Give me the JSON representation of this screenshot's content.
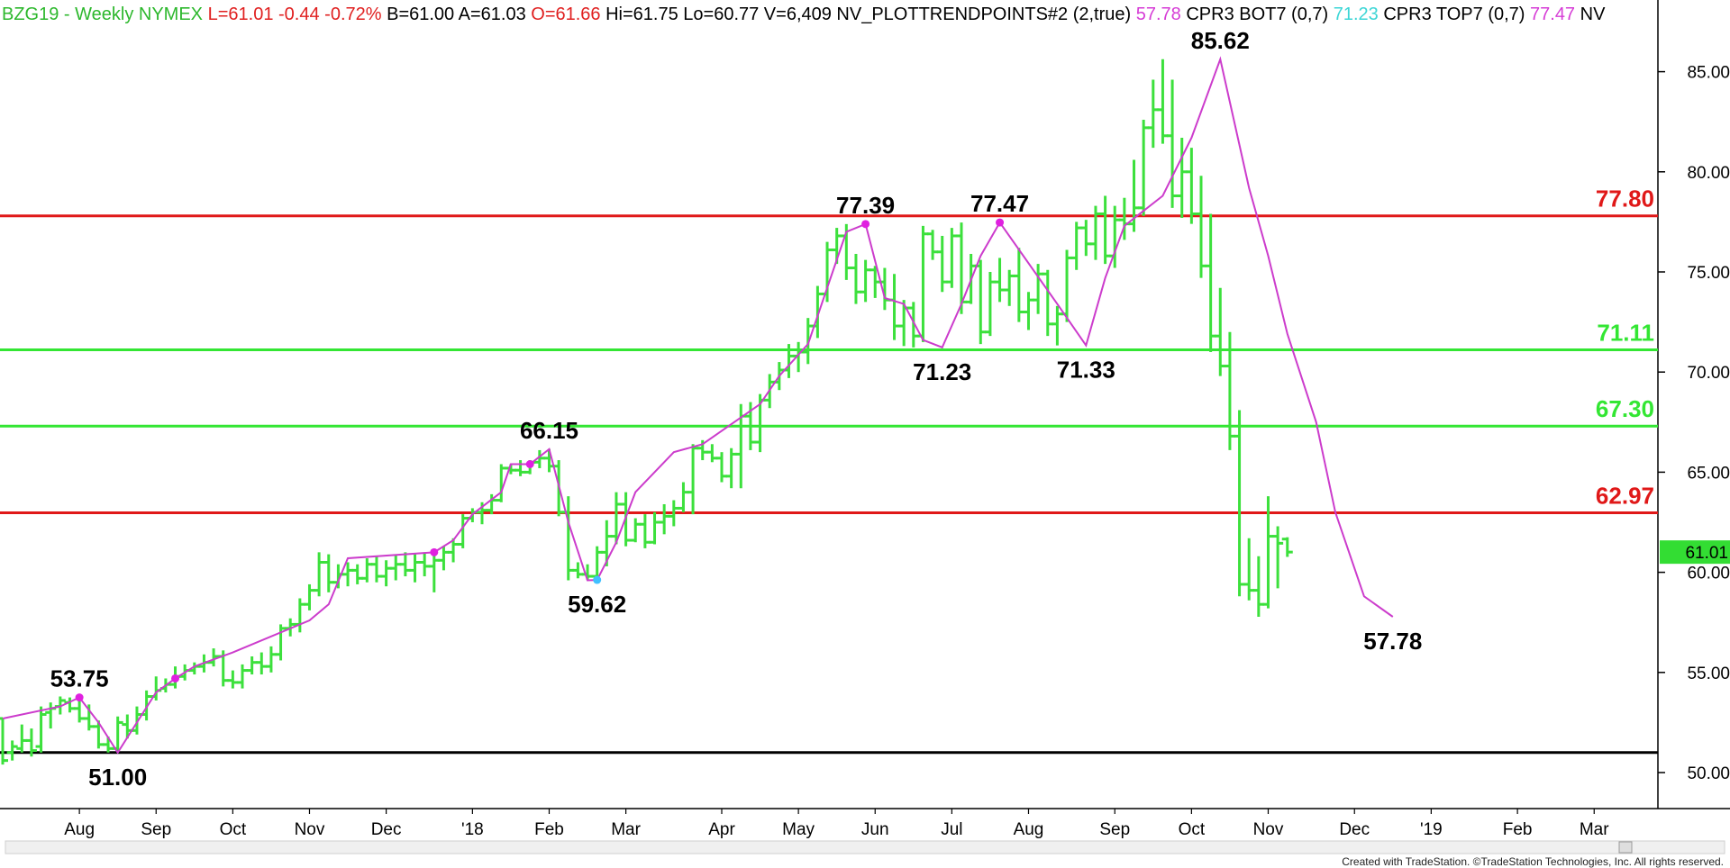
{
  "header": {
    "items": [
      {
        "text": "BZG19 - Weekly  NYMEX",
        "color": "#2db82d"
      },
      {
        "text": "L=61.01",
        "color": "#e02020"
      },
      {
        "text": "-0.44",
        "color": "#e02020"
      },
      {
        "text": "-0.72%",
        "color": "#e02020"
      },
      {
        "text": "B=61.00",
        "color": "#000000"
      },
      {
        "text": "A=61.03",
        "color": "#000000"
      },
      {
        "text": "O=61.66",
        "color": "#e02020"
      },
      {
        "text": "Hi=61.75",
        "color": "#000000"
      },
      {
        "text": "Lo=60.77",
        "color": "#000000"
      },
      {
        "text": "V=6,409",
        "color": "#000000"
      },
      {
        "text": "NV_PLOTTRENDPOINTS#2 (2,true)",
        "color": "#000000"
      },
      {
        "text": "57.78",
        "color": "#d63cd6"
      },
      {
        "text": "CPR3 BOT7 (0,7)",
        "color": "#000000"
      },
      {
        "text": "71.23",
        "color": "#3cd6d6"
      },
      {
        "text": "CPR3 TOP7 (0,7)",
        "color": "#000000"
      },
      {
        "text": "77.47",
        "color": "#d63cd6"
      },
      {
        "text": "NV",
        "color": "#000000"
      }
    ]
  },
  "footer": {
    "credit": "Created with TradeStation. ©TradeStation Technologies, Inc. All rights reserved."
  },
  "colors": {
    "up_bar": "#3ce03c",
    "trend_line": "#cc3ccc",
    "pivot_marker": "#e020e0",
    "pivot_low_marker": "#40c0ff",
    "red_level": "#e01818",
    "green_level": "#33e633",
    "black_level": "#000000",
    "last_price_box": "#33dd33"
  },
  "chart_data": {
    "type": "ohlc",
    "title": "BZG19 - Weekly  NYMEX",
    "ylim": [
      48.0,
      87.5
    ],
    "y_ticks": [
      50.0,
      55.0,
      60.0,
      65.0,
      70.0,
      75.0,
      80.0,
      85.0
    ],
    "y_tick_labels": [
      "50.00",
      "55.00",
      "60.00",
      "65.00",
      "70.00",
      "75.00",
      "80.00",
      "85.00"
    ],
    "x_tick_labels": [
      "Aug",
      "Sep",
      "Oct",
      "Nov",
      "Dec",
      "'18",
      "Feb",
      "Mar",
      "Apr",
      "May",
      "Jun",
      "Jul",
      "Aug",
      "Sep",
      "Oct",
      "Nov",
      "Dec",
      "'19",
      "Feb",
      "Mar"
    ],
    "x_tick_bar_index": [
      8,
      16,
      24,
      32,
      40,
      49,
      57,
      65,
      75,
      83,
      91,
      99,
      107,
      116,
      124,
      132,
      141,
      149,
      158,
      166
    ],
    "horizontal_levels": [
      {
        "value": 77.8,
        "label": "77.80",
        "color": "#e01818"
      },
      {
        "value": 71.11,
        "label": "71.11",
        "color": "#33e633"
      },
      {
        "value": 67.3,
        "label": "67.30",
        "color": "#33e633"
      },
      {
        "value": 62.97,
        "label": "62.97",
        "color": "#e01818"
      },
      {
        "value": 51.0,
        "label": "",
        "color": "#000000"
      }
    ],
    "last_price": {
      "value": 61.01,
      "label": "61.01"
    },
    "pivot_labels": [
      {
        "bar": 8,
        "price": 53.75,
        "text": "53.75",
        "pos": "above"
      },
      {
        "bar": 12,
        "price": 51.0,
        "text": "51.00",
        "pos": "below"
      },
      {
        "bar": 57,
        "price": 66.15,
        "text": "66.15",
        "pos": "above"
      },
      {
        "bar": 62,
        "price": 59.62,
        "text": "59.62",
        "pos": "below"
      },
      {
        "bar": 90,
        "price": 77.39,
        "text": "77.39",
        "pos": "above"
      },
      {
        "bar": 98,
        "price": 71.23,
        "text": "71.23",
        "pos": "below"
      },
      {
        "bar": 104,
        "price": 77.47,
        "text": "77.47",
        "pos": "above"
      },
      {
        "bar": 113,
        "price": 71.33,
        "text": "71.33",
        "pos": "below"
      },
      {
        "bar": 127,
        "price": 85.62,
        "text": "85.62",
        "pos": "above"
      },
      {
        "bar": 145,
        "price": 57.78,
        "text": "57.78",
        "pos": "below"
      }
    ],
    "trend_line": [
      [
        0,
        52.7
      ],
      [
        6,
        53.3
      ],
      [
        8,
        53.75
      ],
      [
        10,
        52.5
      ],
      [
        12,
        51.0
      ],
      [
        16,
        54.0
      ],
      [
        18,
        54.7
      ],
      [
        20,
        55.3
      ],
      [
        24,
        56.0
      ],
      [
        32,
        57.6
      ],
      [
        34,
        58.4
      ],
      [
        36,
        60.7
      ],
      [
        45,
        61.0
      ],
      [
        47,
        61.6
      ],
      [
        49,
        62.9
      ],
      [
        52,
        64.0
      ],
      [
        53,
        65.4
      ],
      [
        55,
        65.4
      ],
      [
        57,
        66.15
      ],
      [
        59,
        62.5
      ],
      [
        61,
        59.6
      ],
      [
        62,
        59.62
      ],
      [
        64,
        61.5
      ],
      [
        66,
        64.0
      ],
      [
        70,
        66.0
      ],
      [
        73,
        66.4
      ],
      [
        79,
        68.4
      ],
      [
        81,
        69.8
      ],
      [
        84,
        71.4
      ],
      [
        86,
        74.2
      ],
      [
        88,
        77.0
      ],
      [
        90,
        77.39
      ],
      [
        92,
        73.7
      ],
      [
        94,
        73.4
      ],
      [
        96,
        71.6
      ],
      [
        98,
        71.23
      ],
      [
        100,
        73.4
      ],
      [
        102,
        75.8
      ],
      [
        104,
        77.47
      ],
      [
        110,
        73.4
      ],
      [
        113,
        71.33
      ],
      [
        115,
        74.7
      ],
      [
        117,
        77.3
      ],
      [
        121,
        78.8
      ],
      [
        124,
        81.7
      ],
      [
        127,
        85.62
      ],
      [
        130,
        79.2
      ],
      [
        132,
        75.8
      ],
      [
        134,
        71.9
      ],
      [
        137,
        67.5
      ],
      [
        139,
        63.0
      ],
      [
        142,
        58.8
      ],
      [
        145,
        57.78
      ]
    ],
    "pivot_markers": [
      {
        "bar": 8,
        "price": 53.75,
        "kind": "high"
      },
      {
        "bar": 18,
        "price": 54.7,
        "kind": "high"
      },
      {
        "bar": 45,
        "price": 61.0,
        "kind": "high"
      },
      {
        "bar": 55,
        "price": 65.4,
        "kind": "high"
      },
      {
        "bar": 90,
        "price": 77.39,
        "kind": "high"
      },
      {
        "bar": 104,
        "price": 77.47,
        "kind": "high"
      },
      {
        "bar": 62,
        "price": 59.62,
        "kind": "low"
      }
    ],
    "bars": [
      [
        52.7,
        52.7,
        50.4,
        50.6
      ],
      [
        51.0,
        51.6,
        50.6,
        51.3
      ],
      [
        51.2,
        52.4,
        51.0,
        51.6
      ],
      [
        51.6,
        52.2,
        50.8,
        51.1
      ],
      [
        51.3,
        53.3,
        51.0,
        52.9
      ],
      [
        53.0,
        53.5,
        52.2,
        53.2
      ],
      [
        53.3,
        53.8,
        52.9,
        53.6
      ],
      [
        53.5,
        53.75,
        53.0,
        53.2
      ],
      [
        53.2,
        53.6,
        52.5,
        52.7
      ],
      [
        52.7,
        53.4,
        52.1,
        52.3
      ],
      [
        52.3,
        52.6,
        51.2,
        51.4
      ],
      [
        51.4,
        51.8,
        51.0,
        51.2
      ],
      [
        51.2,
        52.8,
        51.0,
        52.5
      ],
      [
        52.4,
        52.9,
        51.7,
        52.1
      ],
      [
        52.1,
        53.3,
        51.9,
        52.9
      ],
      [
        52.9,
        54.1,
        52.6,
        53.8
      ],
      [
        53.8,
        54.8,
        53.6,
        54.1
      ],
      [
        54.2,
        54.7,
        54.0,
        54.4
      ],
      [
        54.4,
        55.3,
        54.2,
        54.8
      ],
      [
        54.8,
        55.4,
        54.6,
        55.1
      ],
      [
        55.1,
        55.5,
        54.9,
        55.3
      ],
      [
        55.3,
        55.9,
        55.0,
        55.5
      ],
      [
        55.5,
        56.2,
        55.3,
        55.8
      ],
      [
        55.8,
        56.1,
        54.3,
        54.6
      ],
      [
        54.6,
        55.1,
        54.2,
        54.5
      ],
      [
        54.5,
        55.4,
        54.2,
        55.1
      ],
      [
        55.1,
        55.8,
        54.9,
        55.5
      ],
      [
        55.5,
        56.0,
        54.9,
        55.3
      ],
      [
        55.3,
        56.3,
        55.0,
        55.9
      ],
      [
        55.9,
        57.4,
        55.6,
        57.2
      ],
      [
        57.2,
        57.7,
        56.8,
        57.4
      ],
      [
        57.4,
        58.7,
        57.0,
        58.4
      ],
      [
        58.4,
        59.4,
        58.1,
        59.1
      ],
      [
        59.1,
        61.0,
        58.8,
        60.5
      ],
      [
        60.5,
        60.9,
        59.0,
        59.5
      ],
      [
        59.5,
        60.4,
        59.2,
        59.9
      ],
      [
        59.9,
        60.5,
        59.3,
        60.1
      ],
      [
        60.1,
        60.4,
        59.4,
        59.7
      ],
      [
        59.7,
        60.7,
        59.5,
        60.4
      ],
      [
        60.4,
        60.8,
        59.5,
        59.8
      ],
      [
        59.8,
        60.6,
        59.3,
        60.2
      ],
      [
        60.2,
        60.9,
        59.6,
        60.4
      ],
      [
        60.4,
        61.0,
        59.8,
        60.1
      ],
      [
        60.1,
        60.9,
        59.5,
        60.5
      ],
      [
        60.5,
        61.0,
        59.8,
        60.3
      ],
      [
        60.3,
        61.0,
        59.0,
        60.6
      ],
      [
        60.6,
        61.3,
        60.1,
        61.0
      ],
      [
        61.0,
        61.7,
        60.5,
        61.4
      ],
      [
        61.4,
        62.9,
        61.2,
        62.7
      ],
      [
        62.7,
        63.2,
        62.5,
        63.0
      ],
      [
        63.0,
        63.5,
        62.4,
        63.1
      ],
      [
        63.1,
        63.9,
        62.9,
        63.6
      ],
      [
        63.6,
        65.4,
        63.5,
        65.2
      ],
      [
        65.2,
        65.4,
        64.9,
        65.1
      ],
      [
        65.1,
        65.6,
        64.8,
        65.0
      ],
      [
        65.0,
        65.6,
        64.9,
        65.5
      ],
      [
        65.5,
        66.1,
        65.2,
        65.7
      ],
      [
        65.7,
        66.15,
        65.0,
        65.3
      ],
      [
        65.3,
        65.6,
        62.8,
        63.0
      ],
      [
        63.0,
        63.8,
        59.6,
        60.1
      ],
      [
        60.1,
        60.5,
        59.7,
        59.9
      ],
      [
        59.9,
        60.4,
        59.62,
        59.8
      ],
      [
        59.8,
        61.3,
        59.7,
        61.0
      ],
      [
        61.0,
        62.6,
        60.3,
        61.8
      ],
      [
        61.8,
        64.0,
        61.4,
        63.4
      ],
      [
        63.4,
        64.0,
        61.3,
        61.6
      ],
      [
        61.6,
        62.7,
        61.5,
        62.4
      ],
      [
        62.4,
        62.9,
        61.2,
        61.5
      ],
      [
        61.5,
        63.0,
        61.4,
        62.5
      ],
      [
        62.5,
        63.4,
        61.9,
        62.8
      ],
      [
        62.8,
        63.6,
        62.3,
        63.2
      ],
      [
        63.2,
        64.5,
        63.0,
        64.0
      ],
      [
        64.0,
        66.4,
        62.9,
        66.2
      ],
      [
        66.2,
        66.6,
        65.6,
        66.0
      ],
      [
        66.0,
        66.4,
        65.5,
        65.7
      ],
      [
        65.7,
        66.0,
        64.5,
        64.8
      ],
      [
        64.8,
        66.2,
        64.2,
        65.9
      ],
      [
        65.9,
        68.4,
        64.2,
        67.8
      ],
      [
        67.8,
        68.5,
        66.1,
        66.5
      ],
      [
        66.5,
        68.9,
        66.0,
        68.6
      ],
      [
        68.6,
        69.9,
        68.2,
        69.5
      ],
      [
        69.5,
        70.5,
        69.1,
        70.1
      ],
      [
        70.1,
        71.4,
        69.7,
        70.8
      ],
      [
        70.8,
        71.5,
        70.0,
        71.0
      ],
      [
        71.0,
        72.7,
        70.4,
        72.3
      ],
      [
        72.3,
        74.3,
        71.7,
        73.9
      ],
      [
        73.9,
        76.5,
        73.5,
        76.1
      ],
      [
        76.1,
        77.2,
        75.4,
        76.8
      ],
      [
        76.8,
        77.39,
        74.6,
        75.2
      ],
      [
        75.2,
        75.9,
        73.4,
        74.0
      ],
      [
        74.0,
        75.6,
        73.5,
        75.1
      ],
      [
        75.1,
        75.3,
        73.7,
        74.5
      ],
      [
        74.5,
        75.2,
        73.1,
        73.6
      ],
      [
        73.6,
        74.9,
        71.6,
        72.3
      ],
      [
        72.3,
        73.6,
        71.3,
        73.2
      ],
      [
        73.2,
        73.5,
        71.23,
        71.8
      ],
      [
        71.8,
        77.3,
        71.5,
        76.9
      ],
      [
        76.9,
        77.1,
        75.6,
        76.0
      ],
      [
        76.0,
        76.8,
        74.0,
        74.5
      ],
      [
        74.5,
        77.2,
        74.2,
        76.8
      ],
      [
        76.8,
        77.47,
        72.9,
        73.5
      ],
      [
        73.5,
        75.9,
        73.4,
        75.3
      ],
      [
        75.3,
        75.6,
        71.4,
        72.0
      ],
      [
        72.0,
        75.0,
        71.8,
        74.5
      ],
      [
        74.5,
        75.7,
        73.5,
        74.1
      ],
      [
        74.1,
        75.1,
        73.3,
        74.8
      ],
      [
        74.8,
        76.2,
        72.5,
        73.0
      ],
      [
        73.0,
        74.0,
        72.1,
        73.6
      ],
      [
        73.6,
        75.4,
        72.9,
        74.9
      ],
      [
        74.9,
        75.1,
        71.8,
        72.4
      ],
      [
        72.4,
        73.3,
        71.33,
        72.9
      ],
      [
        72.9,
        76.1,
        72.5,
        75.7
      ],
      [
        75.7,
        77.5,
        75.1,
        77.2
      ],
      [
        77.2,
        77.6,
        75.8,
        76.4
      ],
      [
        76.4,
        78.3,
        75.6,
        77.9
      ],
      [
        77.9,
        78.8,
        75.4,
        75.8
      ],
      [
        75.8,
        78.3,
        75.2,
        77.6
      ],
      [
        77.6,
        78.7,
        76.6,
        77.4
      ],
      [
        77.4,
        80.6,
        77.0,
        78.2
      ],
      [
        78.2,
        82.6,
        77.8,
        82.2
      ],
      [
        82.2,
        84.6,
        81.2,
        83.1
      ],
      [
        83.1,
        85.62,
        81.4,
        81.8
      ],
      [
        81.8,
        84.6,
        78.2,
        78.8
      ],
      [
        78.8,
        81.7,
        77.7,
        80.0
      ],
      [
        80.0,
        81.2,
        77.4,
        77.9
      ],
      [
        77.9,
        79.8,
        74.7,
        75.3
      ],
      [
        75.3,
        77.9,
        71.0,
        71.8
      ],
      [
        71.8,
        74.2,
        69.8,
        70.3
      ],
      [
        70.3,
        72.0,
        66.1,
        66.8
      ],
      [
        66.8,
        68.1,
        58.8,
        59.4
      ],
      [
        59.4,
        61.7,
        58.6,
        59.1
      ],
      [
        59.1,
        60.8,
        57.78,
        58.4
      ],
      [
        58.4,
        63.8,
        58.2,
        61.8
      ],
      [
        61.8,
        62.3,
        59.2,
        61.45
      ],
      [
        61.66,
        61.75,
        60.77,
        61.01
      ]
    ]
  }
}
